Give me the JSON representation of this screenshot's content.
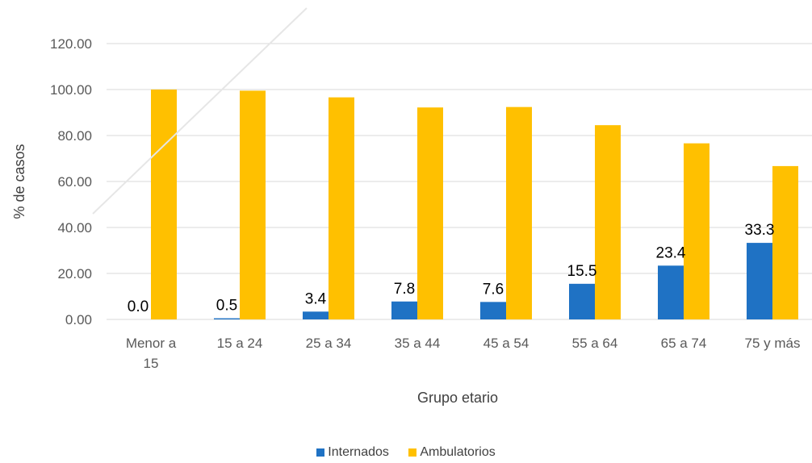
{
  "chart_data": {
    "type": "bar",
    "categories": [
      "Menor a 15",
      "15 a 24",
      "25 a 34",
      "35 a 44",
      "45 a 54",
      "55 a 64",
      "65 a 74",
      "75 y más"
    ],
    "category_lines": [
      [
        "Menor a",
        "15"
      ],
      [
        "15 a 24"
      ],
      [
        "25 a 34"
      ],
      [
        "35 a 44"
      ],
      [
        "45 a 54"
      ],
      [
        "55 a 64"
      ],
      [
        "65 a 74"
      ],
      [
        "75 y más"
      ]
    ],
    "series": [
      {
        "name": "Internados",
        "color": "#1F72C4",
        "values": [
          0.0,
          0.5,
          3.4,
          7.8,
          7.6,
          15.5,
          23.4,
          33.3
        ],
        "labels": [
          "0.0",
          "0.5",
          "3.4",
          "7.8",
          "7.6",
          "15.5",
          "23.4",
          "33.3"
        ]
      },
      {
        "name": "Ambulatorios",
        "color": "#FFC000",
        "values": [
          100.0,
          99.5,
          96.6,
          92.2,
          92.4,
          84.5,
          76.6,
          66.7
        ]
      }
    ],
    "y_ticks": [
      "0.00",
      "20.00",
      "40.00",
      "60.00",
      "80.00",
      "100.00",
      "120.00"
    ],
    "ylim": [
      0,
      120
    ],
    "xlabel": "Grupo etario",
    "ylabel": "% de casos",
    "grid": true,
    "legend_position": "bottom"
  }
}
